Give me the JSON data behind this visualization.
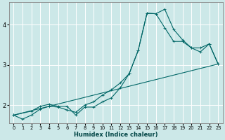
{
  "xlabel": "Humidex (Indice chaleur)",
  "bg_color": "#cce8e8",
  "grid_color": "#ffffff",
  "line_color": "#006666",
  "xlim": [
    -0.5,
    23.5
  ],
  "ylim": [
    1.55,
    4.55
  ],
  "yticks": [
    2,
    3,
    4
  ],
  "xticks": [
    0,
    1,
    2,
    3,
    4,
    5,
    6,
    7,
    8,
    9,
    10,
    11,
    12,
    13,
    14,
    15,
    16,
    17,
    18,
    19,
    20,
    21,
    22,
    23
  ],
  "series1_x": [
    0,
    1,
    2,
    3,
    4,
    5,
    6,
    7,
    8,
    9,
    10,
    11,
    12,
    13,
    14,
    15,
    16,
    17,
    18,
    19,
    20,
    21,
    22,
    23
  ],
  "series1_y": [
    1.75,
    1.65,
    1.75,
    1.9,
    1.97,
    1.95,
    1.88,
    1.82,
    2.0,
    2.08,
    2.25,
    2.38,
    2.55,
    2.78,
    3.35,
    4.28,
    4.27,
    4.38,
    3.88,
    3.62,
    3.42,
    3.32,
    3.52,
    3.02
  ],
  "series2_x": [
    0,
    2,
    3,
    4,
    5,
    6,
    7,
    8,
    9,
    10,
    11,
    12,
    13,
    14,
    15,
    16,
    17,
    18,
    19,
    20,
    21,
    22,
    23
  ],
  "series2_y": [
    1.75,
    1.85,
    1.97,
    2.02,
    1.97,
    1.97,
    1.75,
    1.95,
    1.95,
    2.08,
    2.18,
    2.43,
    2.78,
    3.35,
    4.28,
    4.27,
    3.92,
    3.58,
    3.58,
    3.42,
    3.42,
    3.52,
    3.02
  ],
  "series3_x": [
    0,
    23
  ],
  "series3_y": [
    1.75,
    3.02
  ],
  "marker_size": 2.5,
  "line_width": 0.8
}
